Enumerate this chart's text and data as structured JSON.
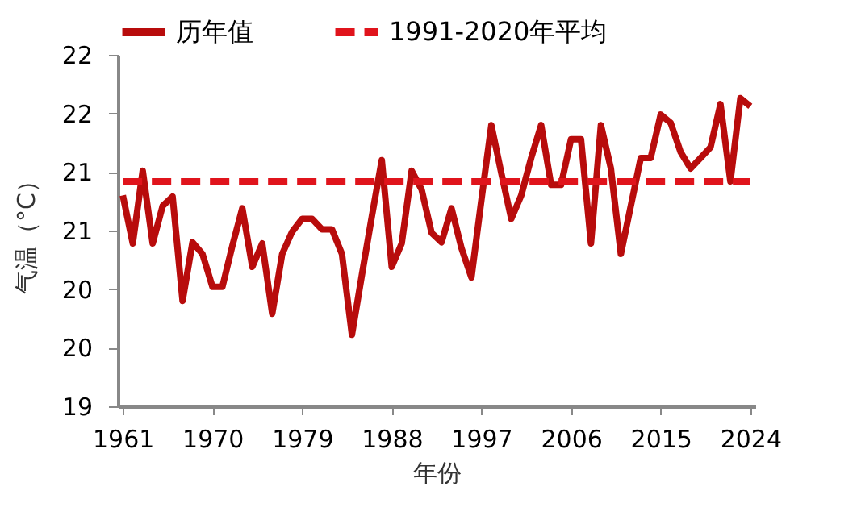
{
  "chart_data": {
    "type": "line",
    "xlabel": "年份",
    "ylabel": "气温（°C）",
    "legend": "top",
    "grid": false,
    "marker": "none",
    "xlim": [
      1960.5,
      2024.5
    ],
    "xticks": [
      1961,
      1970,
      1979,
      1988,
      1997,
      2006,
      2015,
      2024
    ],
    "ylim": [
      19,
      22
    ],
    "yticks": [
      19,
      {
        "value": 19.5,
        "label": "20"
      },
      20,
      {
        "value": 20.5,
        "label": "21"
      },
      21,
      {
        "value": 21.5,
        "label": "22"
      },
      22
    ],
    "x": [
      1961,
      1962,
      1963,
      1964,
      1965,
      1966,
      1967,
      1968,
      1969,
      1970,
      1971,
      1972,
      1973,
      1974,
      1975,
      1976,
      1977,
      1978,
      1979,
      1980,
      1981,
      1982,
      1983,
      1984,
      1985,
      1986,
      1987,
      1988,
      1989,
      1990,
      1991,
      1992,
      1993,
      1994,
      1995,
      1996,
      1997,
      1998,
      1999,
      2000,
      2001,
      2002,
      2003,
      2004,
      2005,
      2006,
      2007,
      2008,
      2009,
      2010,
      2011,
      2012,
      2013,
      2014,
      2015,
      2016,
      2017,
      2018,
      2019,
      2020,
      2021,
      2022,
      2023,
      2024
    ],
    "series": [
      {
        "name": "历年值",
        "color": "#b80c0c",
        "line_style": "solid",
        "values": [
          20.8,
          20.39,
          21.01,
          20.39,
          20.71,
          20.79,
          19.9,
          20.4,
          20.3,
          20.02,
          20.02,
          20.37,
          20.69,
          20.19,
          20.39,
          19.79,
          20.3,
          20.49,
          20.6,
          20.6,
          20.51,
          20.51,
          20.3,
          19.61,
          20.12,
          20.62,
          21.1,
          20.19,
          20.39,
          21.01,
          20.85,
          20.48,
          20.4,
          20.69,
          20.35,
          20.1,
          20.76,
          21.4,
          20.99,
          20.6,
          20.8,
          21.12,
          21.4,
          20.89,
          20.89,
          21.28,
          21.28,
          20.39,
          21.4,
          21.03,
          20.3,
          20.71,
          21.12,
          21.12,
          21.49,
          21.42,
          21.17,
          21.03,
          21.12,
          21.21,
          21.58,
          20.92,
          21.63,
          21.56
        ]
      },
      {
        "name": "1991-2020年平均",
        "color": "#e0141c",
        "line_style": "dashed",
        "type": "line",
        "x": [
          1961,
          2024
        ],
        "values": [
          20.92,
          20.92
        ]
      }
    ]
  }
}
